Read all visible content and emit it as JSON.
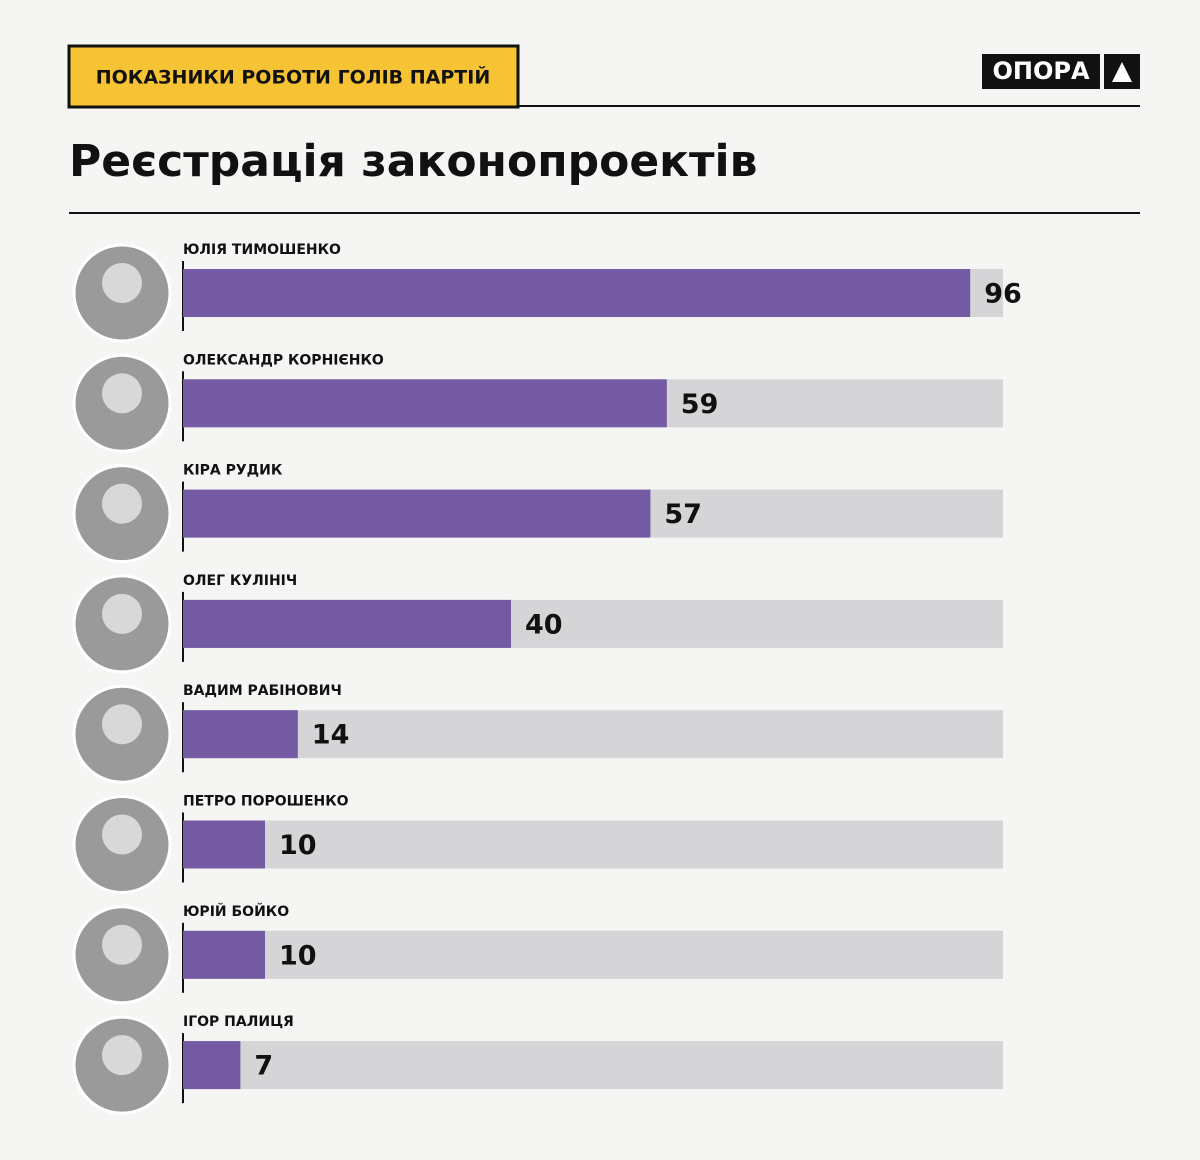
{
  "header": {
    "label": "ПОКАЗНИКИ РОБОТИ ГОЛІВ ПАРТІЙ",
    "logo": "ОПОРА"
  },
  "chart_data": {
    "type": "barh",
    "title": "Реєстрація законопроектів",
    "categories": [
      "ЮЛІЯ ТИМОШЕНКО",
      "ОЛЕКСАНДР КОРНІЄНКО",
      "КІРА РУДИК",
      "ОЛЕГ КУЛІНІЧ",
      "ВАДИМ РАБІНОВИЧ",
      "ПЕТРО ПОРОШЕНКО",
      "ЮРІЙ БОЙКО",
      "ІГОР ПАЛИЦЯ"
    ],
    "values": [
      96,
      59,
      57,
      40,
      14,
      10,
      10,
      7
    ],
    "color": "#735aa3",
    "track_color": "#d5d5d7",
    "xlim": [
      0,
      100
    ]
  }
}
